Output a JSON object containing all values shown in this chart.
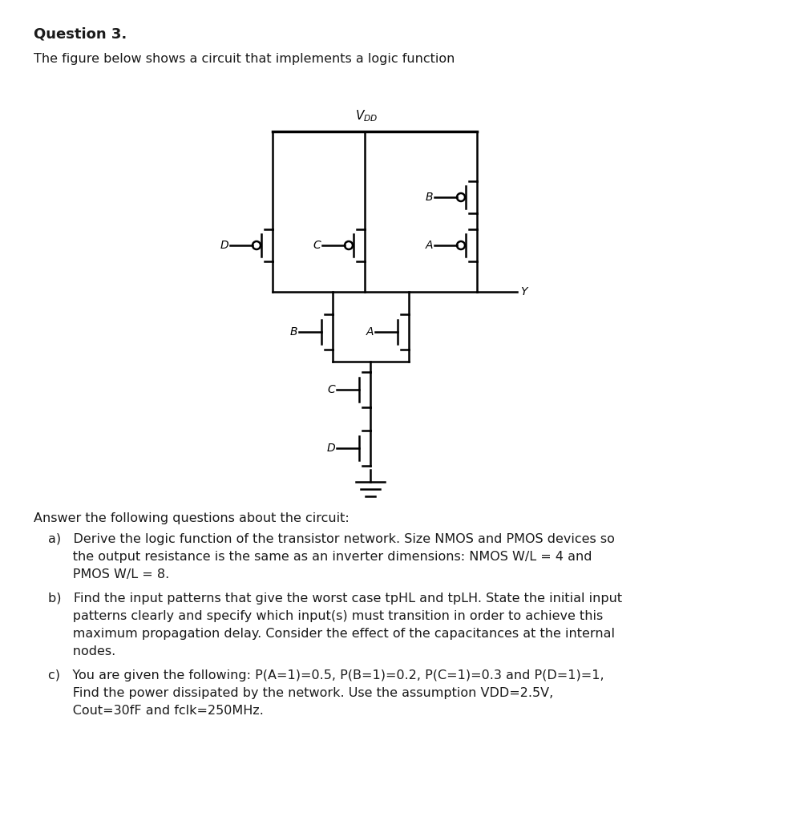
{
  "title": "Question 3.",
  "subtitle": "The figure below shows a circuit that implements a logic function",
  "bg_color": "#ffffff",
  "text_color": "#1a1a1a",
  "answer_intro": "Answer the following questions about the circuit:",
  "qa1": "a)   Derive the logic function of the transistor network. Size NMOS and PMOS devices so",
  "qa2": "      the output resistance is the same as an inverter dimensions: NMOS W/L = 4 and",
  "qa3": "      PMOS W/L = 8.",
  "qb1": "b)   Find the input patterns that give the worst case tpHL and tpLH. State the initial input",
  "qb2": "      patterns clearly and specify which input(s) must transition in order to achieve this",
  "qb3": "      maximum propagation delay. Consider the effect of the capacitances at the internal",
  "qb4": "      nodes.",
  "qc1": "c)   You are given the following: P(A=1)=0.5, P(B=1)=0.2, P(C=1)=0.3 and P(D=1)=1,",
  "qc2": "      Find the power dissipated by the network. Use the assumption VDD=2.5V,",
  "qc3": "      Cout=30fF and fclk=250MHz."
}
